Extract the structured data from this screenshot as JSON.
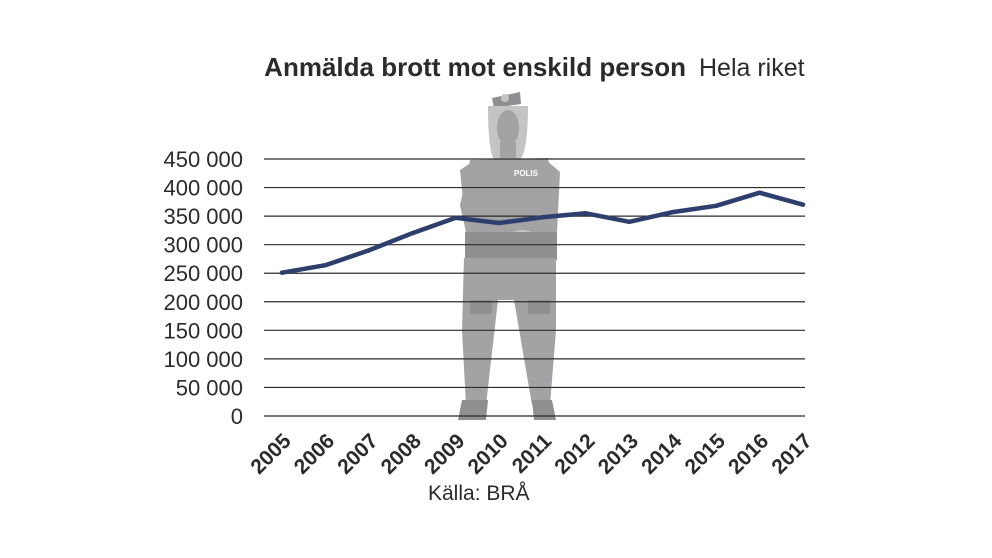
{
  "colors": {
    "series": "#2e3f6e",
    "grid": "#2b2b2b",
    "text": "#2b2b2b",
    "figure": "#a3a3a5"
  },
  "illustration": {
    "name": "police-officer-silhouette",
    "badge_text": "POLIS"
  },
  "chart_data": {
    "type": "line",
    "title": "Anmälda brott mot enskild person",
    "subtitle": "Hela riket",
    "source": "Källa: BRÅ",
    "x": [
      "2005",
      "2006",
      "2007",
      "2008",
      "2009",
      "2010",
      "2011",
      "2012",
      "2013",
      "2014",
      "2015",
      "2016",
      "2017"
    ],
    "series": [
      {
        "values": [
          251000,
          264000,
          290000,
          320000,
          347000,
          338000,
          348000,
          355000,
          340000,
          357000,
          368000,
          391000,
          370000
        ]
      }
    ],
    "y_ticks": [
      {
        "value": 0,
        "label": "0"
      },
      {
        "value": 50000,
        "label": "50 000"
      },
      {
        "value": 100000,
        "label": "100 000"
      },
      {
        "value": 150000,
        "label": "150 000"
      },
      {
        "value": 200000,
        "label": "200 000"
      },
      {
        "value": 250000,
        "label": "250 000"
      },
      {
        "value": 300000,
        "label": "300 000"
      },
      {
        "value": 350000,
        "label": "350 000"
      },
      {
        "value": 400000,
        "label": "400 000"
      },
      {
        "value": 450000,
        "label": "450 000"
      }
    ],
    "ylim": [
      0,
      450000
    ],
    "grid": true,
    "legend": "none"
  }
}
